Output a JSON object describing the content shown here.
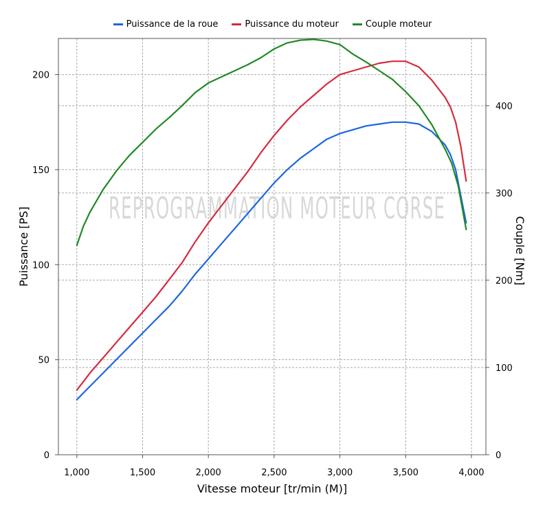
{
  "chart_data": {
    "type": "line",
    "watermark": "REPROGRAMMATION MOTEUR CORSE",
    "xlabel": "Vitesse moteur [tr/min (M)]",
    "ylabel_left": "Puissance [PS]",
    "ylabel_right": "Couple [Nm]",
    "xlim": [
      860,
      4110
    ],
    "ylim_left": [
      0,
      219
    ],
    "ylim_right": [
      0,
      477
    ],
    "x_ticks": [
      1000,
      1500,
      2000,
      2500,
      3000,
      3500,
      4000
    ],
    "x_tick_labels": [
      "1,000",
      "1,500",
      "2,000",
      "2,500",
      "3,000",
      "3,500",
      "4,000"
    ],
    "y_left_ticks": [
      0,
      50,
      100,
      150,
      200
    ],
    "y_left_tick_labels": [
      "0",
      "50",
      "100",
      "150",
      "200"
    ],
    "y_right_ticks": [
      0,
      100,
      200,
      300,
      400
    ],
    "y_right_tick_labels": [
      "0",
      "100",
      "200",
      "300",
      "400"
    ],
    "grid": true,
    "legend_position": "top",
    "series": [
      {
        "name": "Puissance de la roue",
        "axis": "left",
        "color": "#1a66e0",
        "x": [
          1000,
          1100,
          1200,
          1300,
          1400,
          1500,
          1600,
          1700,
          1800,
          1900,
          2000,
          2100,
          2200,
          2300,
          2400,
          2500,
          2600,
          2700,
          2800,
          2900,
          3000,
          3050,
          3100,
          3200,
          3300,
          3400,
          3500,
          3600,
          3700,
          3800,
          3840,
          3880,
          3920,
          3960
        ],
        "y": [
          29,
          36,
          43,
          50,
          57,
          64,
          71,
          78,
          86,
          95,
          103,
          111,
          119,
          127,
          135,
          143,
          150,
          156,
          161,
          166,
          169,
          170,
          171,
          173,
          174,
          175,
          175,
          174,
          170,
          163,
          158,
          150,
          136,
          122
        ]
      },
      {
        "name": "Puissance du moteur",
        "axis": "left",
        "color": "#d42a3f",
        "x": [
          1000,
          1100,
          1200,
          1300,
          1400,
          1500,
          1600,
          1700,
          1800,
          1900,
          2000,
          2100,
          2200,
          2300,
          2400,
          2500,
          2600,
          2700,
          2800,
          2900,
          3000,
          3050,
          3100,
          3200,
          3300,
          3400,
          3500,
          3600,
          3700,
          3800,
          3840,
          3880,
          3920,
          3960
        ],
        "y": [
          34,
          43,
          51,
          59,
          67,
          75,
          83,
          92,
          101,
          112,
          122,
          131,
          140,
          149,
          159,
          168,
          176,
          183,
          189,
          195,
          200,
          201,
          202,
          204,
          206,
          207,
          207,
          204,
          197,
          188,
          183,
          175,
          162,
          144
        ]
      },
      {
        "name": "Couple moteur",
        "axis": "right",
        "color": "#1f8a22",
        "x": [
          1000,
          1050,
          1100,
          1200,
          1300,
          1400,
          1500,
          1600,
          1700,
          1800,
          1900,
          2000,
          2100,
          2200,
          2300,
          2400,
          2500,
          2600,
          2700,
          2800,
          2900,
          3000,
          3100,
          3200,
          3300,
          3400,
          3500,
          3600,
          3700,
          3800,
          3850,
          3900,
          3960
        ],
        "y": [
          240,
          262,
          278,
          304,
          325,
          343,
          358,
          373,
          386,
          400,
          415,
          426,
          433,
          440,
          447,
          455,
          465,
          472,
          475,
          476,
          474,
          470,
          459,
          450,
          440,
          430,
          416,
          400,
          378,
          350,
          334,
          308,
          258
        ]
      }
    ]
  }
}
